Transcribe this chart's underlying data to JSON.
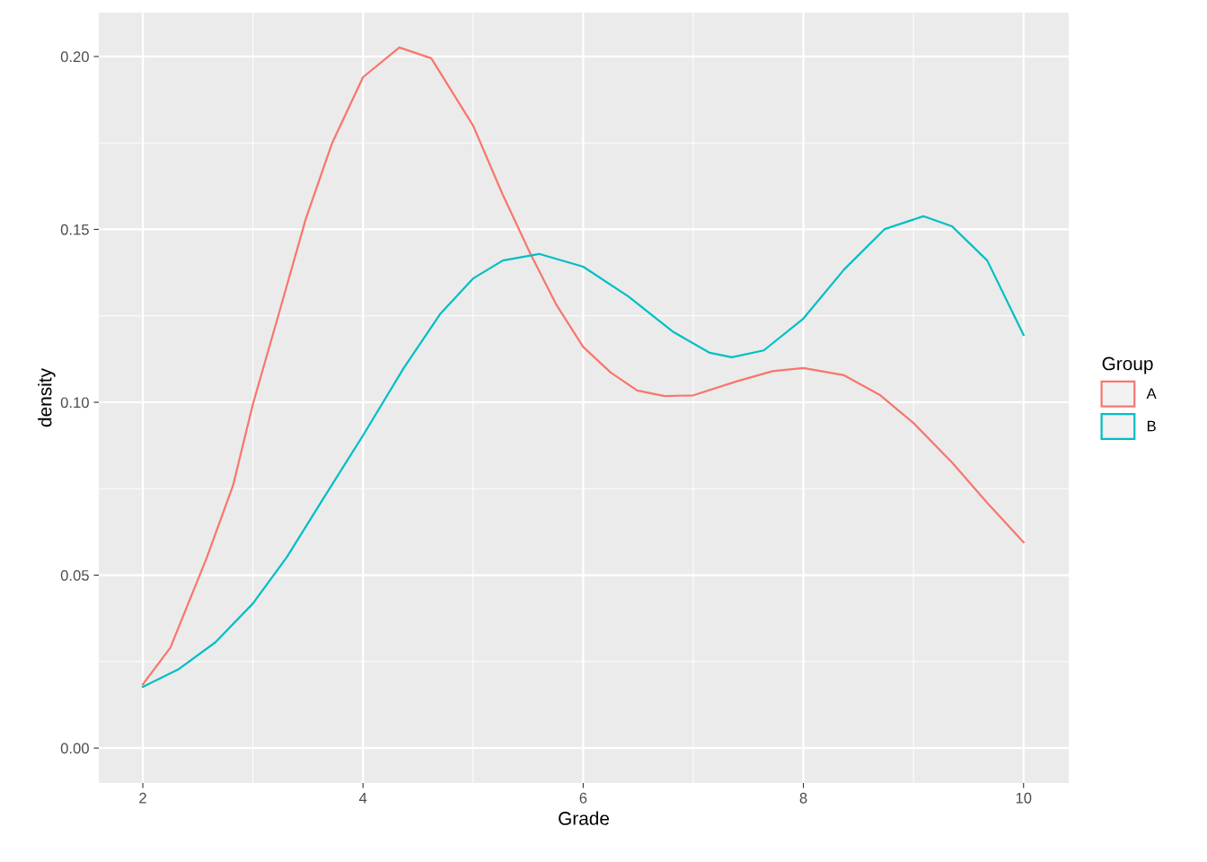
{
  "chart_data": {
    "type": "line",
    "xlabel": "Grade",
    "ylabel": "density",
    "legend_title": "Group",
    "legend": "right",
    "grid": true,
    "marker": "none",
    "line_style": "solid",
    "xlim": [
      1.6,
      10.41
    ],
    "ylim": [
      -0.0101,
      0.2127
    ],
    "xticks": [
      2,
      4,
      6,
      8,
      10
    ],
    "yticks": [
      {
        "value": 0,
        "label": "0.00"
      },
      {
        "value": 0.05,
        "label": "0.05"
      },
      {
        "value": 0.1,
        "label": "0.10"
      },
      {
        "value": 0.15,
        "label": "0.15"
      },
      {
        "value": 0.2,
        "label": "0.20"
      }
    ],
    "series": [
      {
        "name": "A",
        "color": "#f8766d",
        "x": [
          2,
          2.25,
          2.58,
          2.82,
          3.0,
          3.23,
          3.48,
          3.72,
          4.0,
          4.33,
          4.62,
          5.0,
          5.27,
          5.52,
          5.76,
          6.0,
          6.25,
          6.49,
          6.74,
          7.0,
          7.39,
          7.72,
          8.0,
          8.37,
          8.7,
          9.0,
          9.35,
          9.67,
          10
        ],
        "values": [
          0.0184,
          0.029,
          0.055,
          0.076,
          0.0995,
          0.125,
          0.153,
          0.175,
          0.194,
          0.2026,
          0.1995,
          0.18,
          0.16,
          0.143,
          0.128,
          0.116,
          0.1086,
          0.1034,
          0.1018,
          0.102,
          0.106,
          0.109,
          0.1099,
          0.1078,
          0.102,
          0.094,
          0.0826,
          0.0709,
          0.0595
        ]
      },
      {
        "name": "B",
        "color": "#00bfc4",
        "x": [
          2,
          2.33,
          2.66,
          3.0,
          3.31,
          3.64,
          4.0,
          4.37,
          4.7,
          5.0,
          5.27,
          5.6,
          6.0,
          6.41,
          6.82,
          7.15,
          7.35,
          7.64,
          8.0,
          8.37,
          8.74,
          9.09,
          9.35,
          9.67,
          10
        ],
        "values": [
          0.0177,
          0.0229,
          0.0306,
          0.0418,
          0.0553,
          0.0722,
          0.0904,
          0.1099,
          0.1255,
          0.1358,
          0.141,
          0.1429,
          0.1392,
          0.1306,
          0.1203,
          0.1143,
          0.113,
          0.115,
          0.1242,
          0.1384,
          0.1501,
          0.1538,
          0.1509,
          0.141,
          0.1195
        ]
      }
    ]
  }
}
